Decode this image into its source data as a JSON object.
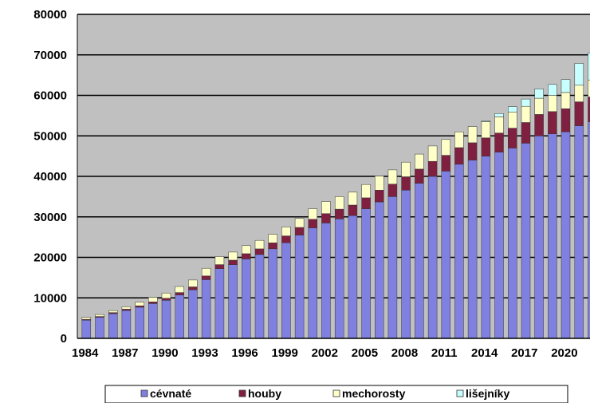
{
  "chart_data": {
    "type": "bar",
    "stacked": true,
    "grid": true,
    "legend_position": "bottom",
    "ylim": [
      0,
      80000
    ],
    "yticks": [
      0,
      10000,
      20000,
      30000,
      40000,
      50000,
      60000,
      70000,
      80000
    ],
    "ytick_labels": [
      "0",
      "10000",
      "20000",
      "30000",
      "40000",
      "50000",
      "60000",
      "70000",
      "80000"
    ],
    "categories": [
      "1984",
      "1985",
      "1986",
      "1987",
      "1988",
      "1989",
      "1990",
      "1991",
      "1992",
      "1993",
      "1994",
      "1995",
      "1996",
      "1997",
      "1998",
      "1999",
      "2000",
      "2001",
      "2002",
      "2003",
      "2004",
      "2005",
      "2006",
      "2007",
      "2008",
      "2009",
      "2010",
      "2011",
      "2012",
      "2013",
      "2014",
      "2015",
      "2016",
      "2017",
      "2018",
      "2019",
      "2020",
      "2021",
      "2022"
    ],
    "xtick_labels": [
      "1984",
      "1987",
      "1990",
      "1993",
      "1996",
      "1999",
      "2002",
      "2005",
      "2008",
      "2011",
      "2014",
      "2017",
      "2020"
    ],
    "series": [
      {
        "name": "cévnaté",
        "color": "#8080e0",
        "values": [
          4500,
          5200,
          6100,
          6900,
          7700,
          8600,
          9400,
          10700,
          12000,
          14500,
          17200,
          18200,
          19600,
          20700,
          22100,
          23600,
          25500,
          27300,
          28500,
          29500,
          30300,
          32000,
          33700,
          35000,
          36600,
          38300,
          40000,
          41300,
          43000,
          44000,
          45000,
          46000,
          47000,
          48200,
          50000,
          50500,
          51000,
          52500,
          53500
        ]
      },
      {
        "name": "houby",
        "color": "#802040",
        "values": [
          200,
          200,
          250,
          300,
          350,
          400,
          500,
          600,
          700,
          900,
          1000,
          1100,
          1300,
          1400,
          1500,
          1700,
          1900,
          2100,
          2300,
          2400,
          2600,
          2700,
          2900,
          3100,
          3300,
          3500,
          3700,
          3900,
          4100,
          4300,
          4500,
          4700,
          4900,
          5100,
          5300,
          5500,
          5700,
          5900,
          6100
        ]
      },
      {
        "name": "mechorosty",
        "color": "#ffffc8",
        "values": [
          500,
          500,
          500,
          600,
          900,
          1100,
          1300,
          1500,
          1700,
          1900,
          2000,
          2000,
          2000,
          2100,
          2100,
          2200,
          2200,
          2600,
          3000,
          3100,
          3200,
          3300,
          3500,
          3500,
          3600,
          3700,
          3800,
          3900,
          3900,
          4000,
          4000,
          4000,
          4000,
          4000,
          4000,
          4000,
          4000,
          4100,
          4200
        ]
      },
      {
        "name": "lišejníky",
        "color": "#c8ffff",
        "values": [
          0,
          0,
          0,
          0,
          0,
          0,
          0,
          0,
          0,
          0,
          0,
          0,
          0,
          0,
          0,
          0,
          0,
          0,
          0,
          0,
          0,
          0,
          0,
          0,
          0,
          0,
          0,
          0,
          0,
          0,
          200,
          800,
          1300,
          1800,
          2300,
          2700,
          3200,
          5400,
          6700
        ]
      }
    ]
  }
}
